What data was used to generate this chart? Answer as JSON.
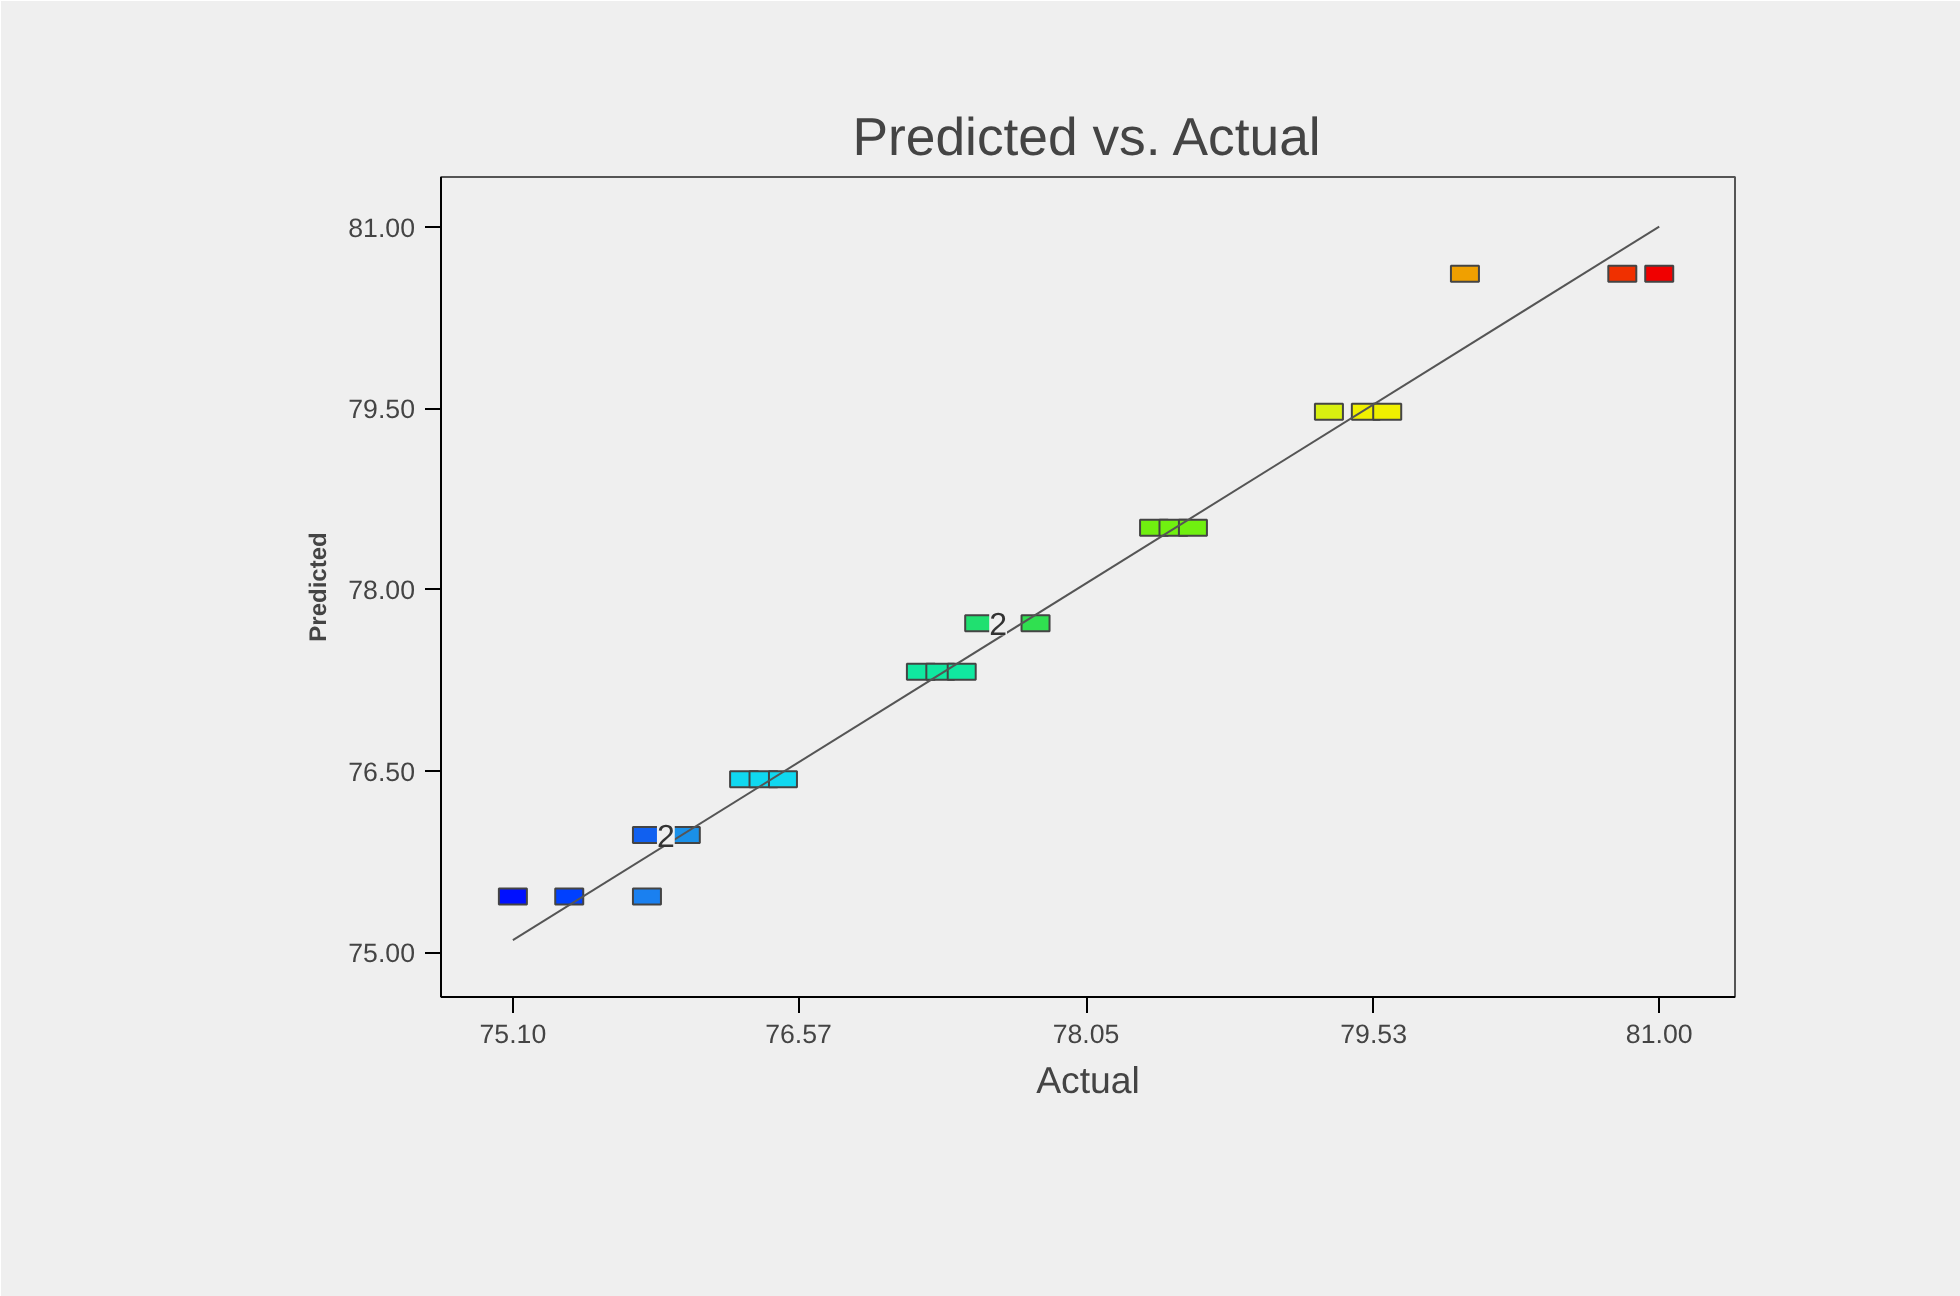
{
  "chart_data": {
    "type": "scatter",
    "title": "Predicted vs. Actual",
    "xlabel": "Actual",
    "ylabel": "Predicted",
    "grid": false,
    "xlim": [
      74.73,
      81.39
    ],
    "ylim": [
      74.63,
      81.41
    ],
    "xticks": [
      {
        "value": 75.1,
        "label": "75.10"
      },
      {
        "value": 76.57,
        "label": "76.57"
      },
      {
        "value": 78.05,
        "label": "78.05"
      },
      {
        "value": 79.53,
        "label": "79.53"
      },
      {
        "value": 81.0,
        "label": "81.00"
      }
    ],
    "yticks": [
      {
        "value": 75.0,
        "label": "75.00"
      },
      {
        "value": 76.5,
        "label": "76.50"
      },
      {
        "value": 78.0,
        "label": "78.00"
      },
      {
        "value": 79.5,
        "label": "79.50"
      },
      {
        "value": 81.0,
        "label": "81.00"
      }
    ],
    "series": [
      {
        "marker": "square",
        "x": [
          75.1,
          75.39,
          75.79,
          75.79,
          75.99,
          76.29,
          76.39,
          76.49,
          77.2,
          77.3,
          77.41,
          77.5,
          77.79,
          78.4,
          78.5,
          78.6,
          79.3,
          79.49,
          79.6,
          80.0,
          80.81,
          81.0
        ],
        "values": [
          75.46,
          75.46,
          75.46,
          75.97,
          75.97,
          76.43,
          76.43,
          76.43,
          77.32,
          77.32,
          77.32,
          77.72,
          77.72,
          78.51,
          78.51,
          78.51,
          79.47,
          79.47,
          79.47,
          80.61,
          80.61,
          80.61
        ],
        "colors": [
          "#0010ff",
          "#0040ff",
          "#1a80f0",
          "#1060f0",
          "#1a90e8",
          "#10d8f0",
          "#10d8f0",
          "#10d8f0",
          "#10e8a0",
          "#10e8a0",
          "#10e8a0",
          "#20e070",
          "#30e050",
          "#70f010",
          "#70f010",
          "#70f010",
          "#d8f010",
          "#f0f000",
          "#f0f000",
          "#f0a000",
          "#f03000",
          "#f00000"
        ]
      },
      {
        "type": "line",
        "x": [
          75.1,
          81.0
        ],
        "values": [
          75.1,
          81.0
        ],
        "color": "#555555"
      }
    ],
    "annotations": [
      {
        "text": "2",
        "x": 75.79,
        "y": 75.97
      },
      {
        "text": "2",
        "x": 77.5,
        "y": 77.72
      }
    ]
  }
}
